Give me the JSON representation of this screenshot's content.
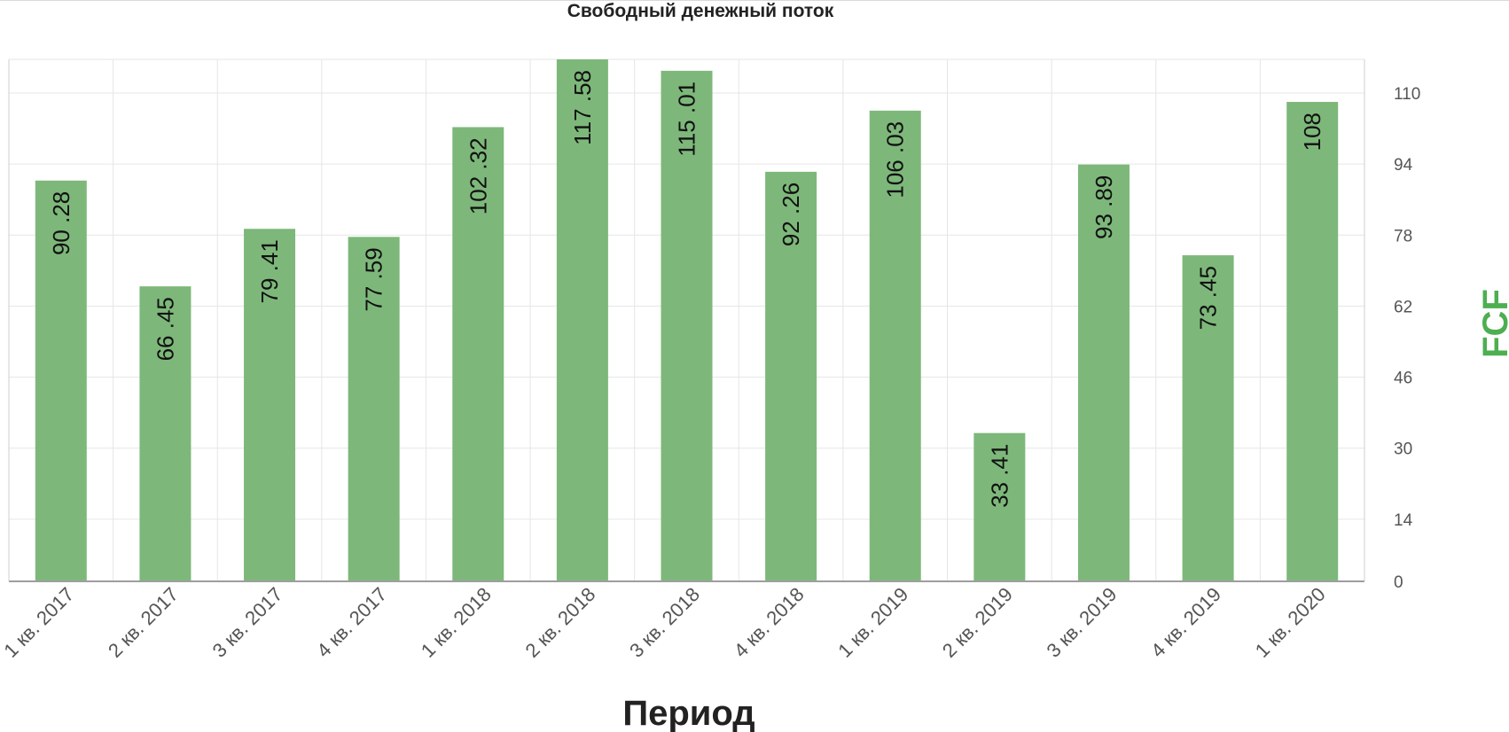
{
  "colors": {
    "bar": "#7db87a",
    "ylabel": "#4caf50",
    "grid": "#e6e6e6",
    "axis": "#9e9e9e"
  },
  "chart_data": {
    "type": "bar",
    "title": "Свободный денежный поток",
    "xlabel": "Период",
    "ylabel": "FCF",
    "categories": [
      "1 кв. 2017",
      "2 кв. 2017",
      "3 кв. 2017",
      "4 кв. 2017",
      "1 кв. 2018",
      "2 кв. 2018",
      "3 кв. 2018",
      "4 кв. 2018",
      "1 кв. 2019",
      "2 кв. 2019",
      "3 кв. 2019",
      "4 кв. 2019",
      "1 кв. 2020"
    ],
    "values": [
      90.28,
      66.45,
      79.41,
      77.59,
      102.32,
      117.58,
      115.01,
      92.26,
      106.03,
      33.41,
      93.89,
      73.45,
      108
    ],
    "value_labels": [
      "90 .28",
      "66 .45",
      "79 .41",
      "77 .59",
      "102 .32",
      "117 .58",
      "115 .01",
      "92 .26",
      "106 .03",
      "33 .41",
      "93 .89",
      "73 .45",
      "108"
    ],
    "yticks": [
      0,
      14,
      30,
      46,
      62,
      78,
      94,
      110
    ],
    "ylim": [
      0,
      117.58
    ],
    "y_axis_position": "right",
    "grid": true,
    "legend": false
  }
}
